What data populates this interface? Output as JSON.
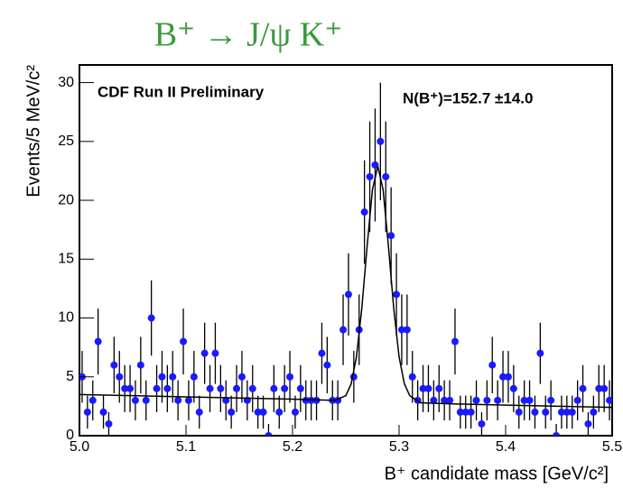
{
  "chart_data": {
    "type": "errorbar-histogram",
    "title": "B⁺ → J/ψ K⁺",
    "x_label": "B⁺ candidate mass [GeV/c²]",
    "y_label": "Events/5 MeV/c²",
    "annotations": [
      "CDF Run II Preliminary",
      "N(B⁺)=152.7 ±14.0"
    ],
    "bins": [
      5,
      5.005,
      5.01,
      5.015,
      5.02,
      5.025,
      5.03,
      5.035,
      5.04,
      5.045,
      5.05,
      5.055,
      5.06,
      5.065,
      5.07,
      5.075,
      5.08,
      5.085,
      5.09,
      5.095,
      5.1,
      5.105,
      5.11,
      5.115,
      5.12,
      5.125,
      5.13,
      5.135,
      5.14,
      5.145,
      5.15,
      5.155,
      5.16,
      5.165,
      5.17,
      5.175,
      5.18,
      5.185,
      5.19,
      5.195,
      5.2,
      5.205,
      5.21,
      5.215,
      5.22,
      5.225,
      5.23,
      5.235,
      5.24,
      5.245,
      5.25,
      5.255,
      5.26,
      5.265,
      5.27,
      5.275,
      5.28,
      5.285,
      5.29,
      5.295,
      5.3,
      5.305,
      5.31,
      5.315,
      5.32,
      5.325,
      5.33,
      5.335,
      5.34,
      5.345,
      5.35,
      5.355,
      5.36,
      5.365,
      5.37,
      5.375,
      5.38,
      5.385,
      5.39,
      5.395,
      5.4,
      5.405,
      5.41,
      5.415,
      5.42,
      5.425,
      5.43,
      5.435,
      5.44,
      5.445,
      5.45,
      5.455,
      5.46,
      5.465,
      5.47,
      5.475,
      5.48,
      5.485,
      5.49,
      5.495,
      5.5
    ],
    "values": [
      5,
      2,
      3,
      8,
      2,
      1,
      6,
      5,
      4,
      4,
      3,
      6,
      3,
      10,
      4,
      5,
      4,
      5,
      3,
      8,
      3,
      5,
      2,
      7,
      4,
      7,
      4,
      3,
      2,
      4,
      5,
      3,
      4,
      2,
      2,
      0,
      4,
      2,
      4,
      5,
      2,
      4,
      3,
      3,
      3,
      7,
      6,
      3,
      3,
      9,
      12,
      5,
      9,
      19,
      22,
      23,
      25,
      22,
      17,
      12,
      9,
      9,
      5,
      3,
      4,
      4,
      3,
      4,
      3,
      3,
      8,
      2,
      2,
      2,
      3,
      1,
      3,
      6,
      3,
      5,
      5,
      4,
      2,
      3,
      3,
      2,
      7,
      2,
      3,
      0,
      2,
      2,
      2,
      3,
      4,
      1,
      2,
      4,
      4,
      3
    ],
    "errors": [
      2.2,
      1.4,
      1.7,
      2.8,
      1.4,
      1,
      2.4,
      2.2,
      2,
      2,
      1.7,
      2.4,
      1.7,
      3.2,
      2,
      2.2,
      2,
      2.2,
      1.7,
      2.8,
      1.7,
      2.2,
      1.4,
      2.6,
      2,
      2.6,
      2,
      1.7,
      1.4,
      2,
      2.2,
      1.7,
      2,
      1.4,
      1.4,
      1,
      2,
      1.4,
      2,
      2.2,
      1.4,
      2,
      1.7,
      1.7,
      1.7,
      2.6,
      2.4,
      1.7,
      1.7,
      3,
      3.5,
      2.2,
      3,
      4.4,
      4.7,
      4.8,
      5,
      4.7,
      4.1,
      3.5,
      3,
      3,
      2.2,
      1.7,
      2,
      2,
      1.7,
      2,
      1.7,
      1.7,
      2.8,
      1.4,
      1.4,
      1.4,
      1.7,
      1,
      1.7,
      2.4,
      1.7,
      2.2,
      2.2,
      2,
      1.4,
      1.7,
      1.7,
      1.4,
      2.6,
      1.4,
      1.7,
      1,
      1.4,
      1.4,
      1.4,
      1.7,
      2,
      1,
      1.4,
      2,
      2,
      1.7
    ],
    "color": "#1a1aff",
    "fit": {
      "x": [
        5.0,
        5.05,
        5.1,
        5.15,
        5.2,
        5.24,
        5.25,
        5.255,
        5.26,
        5.265,
        5.27,
        5.275,
        5.28,
        5.285,
        5.29,
        5.295,
        5.3,
        5.305,
        5.31,
        5.32,
        5.35,
        5.4,
        5.45,
        5.5
      ],
      "y": [
        3.5,
        3.4,
        3.3,
        3.2,
        3.1,
        3.0,
        3.4,
        4.4,
        6.7,
        10.8,
        16.1,
        20.9,
        22.9,
        20.9,
        16.1,
        10.8,
        6.7,
        4.4,
        3.4,
        2.8,
        2.7,
        2.6,
        2.5,
        2.4
      ],
      "color": "#000000"
    },
    "xlim": [
      5.0,
      5.5
    ],
    "xticks": [
      {
        "value": 5,
        "label": "5.0"
      },
      5.1,
      5.2,
      5.3,
      5.4,
      5.5
    ],
    "ylim": [
      0,
      31.5
    ],
    "yticks": [
      0,
      5,
      10,
      15,
      20,
      25,
      30
    ]
  }
}
